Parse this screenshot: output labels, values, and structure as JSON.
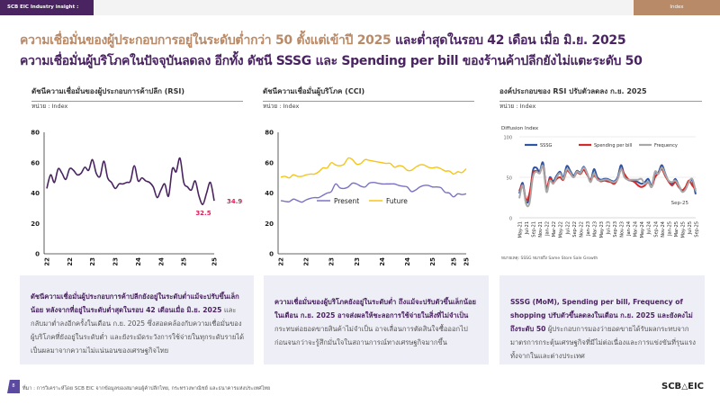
{
  "header": {
    "brand": "SCB EIC Industry insight : Wholesale & Retail",
    "index_tab": "Index"
  },
  "headline": {
    "line1_a": "ความเชื่อมั่นของผู้ประกอบการอยู่ในระดับต่ำกว่า 50 ตั้งแต่เข้าปี 2025",
    "line1_b": "และต่ำสุดในรอบ 42 เดือน เมื่อ มิ.ย. 2025",
    "line2": "ความเชื่อมั่นผู้บริโภคในปัจจุบันลดลง อีกทั้ง ดัชนี SSSG และ Spending per bill ของร้านค้าปลีกยังไม่แตะระดับ 50"
  },
  "panels": [
    {
      "title": "ดัชนีความเชื่อมั่นของผู้ประกอบการค้าปลีก (RSI)",
      "unit": "หน่วย : Index",
      "text_bold": "ดัชนีความเชื่อมั่นผู้ประกอบการค้าปลีกยังอยู่ในระดับต่ำแม้จะปรับขึ้นเล็กน้อย หลังจากที่อยู่ในระดับต่ำสุดในรอบ 42 เดือนเมื่อ มิ.ย. 2025",
      "text": " และกลับมาต่ำลงอีกครั้งในเดือน ก.ย. 2025 ซึ่งสอดคล้องกับความเชื่อมั่นของผู้บริโภคที่ยังอยู่ในระดับต่ำ และยังระมัดระวังการใช้จ่ายในทุกระดับรายได้ เป็นผลมาจากความไม่แน่นอนของเศรษฐกิจไทย"
    },
    {
      "title": "ดัชนีความเชื่อมั่นผู้บริโภค (CCI)",
      "unit": "หน่วย : Index",
      "text_bold": "ความเชื่อมั่นของผู้บริโภคยังอยู่ในระดับต่ำ ถึงแม้จะปรับตัวขึ้นเล็กน้อยในเดือน ก.ย. 2025 อาจส่งผลให้ชะลอการใช้จ่ายในสิ่งที่ไม่จำเป็น",
      "text": " กระทบต่อยอดขายสินค้าไม่จำเป็น อาจเลื่อนการตัดสินใจซื้อออกไปก่อนจนกว่าจะรู้สึกมั่นใจในสถานการณ์ทางเศรษฐกิจมากขึ้น"
    },
    {
      "title": "องค์ประกอบของ RSI ปรับตัวลดลง ก.ย. 2025",
      "unit": "หน่วย : Index",
      "text_bold": "SSSG (MoM), Spending per bill, Frequency of shopping ปรับตัวขึ้นลดลงในเดือน ก.ย. 2025 และยังคงไม่ถึงระดับ 50",
      "text": " ผู้ประกอบการมองว่ายอดขายได้รับผลกระทบจากมาตรการกระตุ้นเศรษฐกิจที่มีไม่ต่อเนื่องและการแข่งขันที่รุนแรงทั้งจากในและต่างประเทศ"
    }
  ],
  "footer": {
    "page": "8",
    "source": "ที่มา : การวิเคราะห์โดย SCB EIC จากข้อมูลของสมาคมผู้ค้าปลีกไทย, กระทรวงพาณิชย์ และธนาคารแห่งประเทศไทย",
    "logo": "SCB EIC"
  },
  "chart_data": [
    {
      "type": "line",
      "title": "ดัชนีความเชื่อมั่นของผู้ประกอบการค้าปลีก (RSI)",
      "ylim": [
        0,
        80
      ],
      "yticks": [
        0,
        20,
        40,
        60,
        80
      ],
      "xticks": [
        "Jan-2022",
        "Jul-2022",
        "Jan-2023",
        "Jul-2023",
        "Jan-2024",
        "Jul-2024",
        "Jan-2025",
        "Sep-2025"
      ],
      "xtick_index": [
        0,
        6,
        12,
        18,
        24,
        30,
        36,
        44
      ],
      "series": [
        {
          "color": "#4a2461",
          "values": [
            43,
            52,
            47,
            56,
            53,
            49,
            56,
            55,
            52,
            53,
            57,
            55,
            62,
            53,
            51,
            61,
            50,
            47,
            43,
            46,
            46,
            47,
            48,
            58,
            48,
            50,
            48,
            47,
            44,
            37,
            42,
            46,
            38,
            56,
            54,
            63,
            47,
            44,
            42,
            48,
            38,
            32.5,
            40,
            47,
            34.9
          ]
        }
      ],
      "annotations": [
        {
          "label": "32.5",
          "index": 41
        },
        {
          "label": "34.9",
          "index": 44
        }
      ],
      "annotation_color": "#d6245a"
    },
    {
      "type": "line",
      "title": "ดัชนีความเชื่อมั่นผู้บริโภค (CCI)",
      "ylim": [
        0,
        80
      ],
      "yticks": [
        0,
        20,
        40,
        60,
        80
      ],
      "xticks": [
        "Jan-2022",
        "Jul-2022",
        "Jan-2023",
        "Jul-2023",
        "Jan-2024",
        "Jul-2024",
        "Jan-2025",
        "Jun-2025",
        "Sep-2025"
      ],
      "xtick_index": [
        0,
        6,
        12,
        18,
        24,
        30,
        36,
        41,
        44
      ],
      "legend": "inside-lower",
      "series": [
        {
          "name": "Present",
          "color": "#7b72c4",
          "values": [
            35,
            34.5,
            34.3,
            36,
            35,
            34,
            35.5,
            36.5,
            37,
            37,
            38.5,
            40,
            41,
            46,
            43.5,
            43,
            44,
            46.5,
            46,
            44.5,
            44,
            46.5,
            47,
            46.5,
            46,
            46,
            46,
            46,
            45,
            44.5,
            44,
            41,
            42,
            44,
            45,
            45,
            44,
            44,
            43.5,
            40.5,
            40,
            37.5,
            39.5,
            39,
            39.5
          ]
        },
        {
          "name": "Future",
          "color": "#f5c518",
          "values": [
            50.5,
            51,
            50,
            52,
            51,
            51,
            52,
            52.5,
            52.5,
            54,
            56.5,
            56.5,
            60,
            58.5,
            58,
            59,
            63,
            62,
            59,
            59.5,
            62,
            61.5,
            61,
            60.5,
            60,
            59.5,
            59.5,
            57,
            58,
            57.5,
            55,
            55,
            57,
            58.5,
            58.5,
            57,
            56.5,
            57,
            56,
            54.5,
            54.5,
            52.5,
            54,
            53.5,
            56
          ]
        }
      ]
    },
    {
      "type": "line",
      "title": "องค์ประกอบของ RSI ปรับตัวลดลง ก.ย. 2025",
      "ylabel": "Diffusion Index",
      "ylim": [
        0,
        100
      ],
      "yticks": [
        0,
        50,
        100
      ],
      "legend": "top",
      "xticks": [
        "May-21",
        "Jul-21",
        "Sep-21",
        "Nov-21",
        "Jan-22",
        "Mar-22",
        "May-22",
        "Jul-22",
        "Sep-22",
        "Nov-22",
        "Jan-23",
        "Mar-23",
        "May-23",
        "Jul-23",
        "Sep-23",
        "Nov-23",
        "Jan-24",
        "Mar-24",
        "May-24",
        "Jul-24",
        "Sep-24",
        "Nov-24",
        "Jan-25",
        "Mar-25",
        "May-25",
        "Jul-25",
        "Sep-25"
      ],
      "annotation": "Sep-25",
      "note": "หมายเหตุ: SSSG หมายถึง Same Store Sale Growth",
      "series": [
        {
          "name": "SSSG",
          "color": "#2f55a4",
          "values": [
            30,
            43,
            20,
            25,
            58,
            62,
            57,
            68,
            35,
            50,
            45,
            52,
            57,
            50,
            64,
            58,
            52,
            58,
            56,
            63,
            55,
            45,
            60,
            50,
            47,
            48,
            48,
            46,
            45,
            50,
            65,
            52,
            47,
            46,
            46,
            44,
            42,
            44,
            48,
            40,
            55,
            56,
            65,
            55,
            45,
            42,
            48,
            40,
            33,
            36,
            45,
            46,
            29
          ]
        },
        {
          "name": "Spending per bill",
          "color": "#d42a2a",
          "values": [
            33,
            40,
            22,
            30,
            54,
            58,
            55,
            64,
            37,
            49,
            43,
            48,
            50,
            47,
            58,
            55,
            50,
            56,
            54,
            59,
            53,
            47,
            52,
            48,
            45,
            46,
            45,
            44,
            42,
            48,
            60,
            54,
            48,
            46,
            44,
            40,
            38,
            40,
            44,
            38,
            50,
            55,
            60,
            52,
            45,
            40,
            44,
            38,
            34,
            38,
            46,
            40,
            35
          ]
        },
        {
          "name": "Frequency",
          "color": "#a8a8a8",
          "values": [
            24,
            40,
            17,
            18,
            50,
            57,
            55,
            64,
            32,
            46,
            42,
            50,
            55,
            48,
            60,
            56,
            50,
            57,
            55,
            62,
            55,
            44,
            55,
            47,
            46,
            47,
            47,
            45,
            44,
            48,
            60,
            50,
            47,
            47,
            47,
            47,
            48,
            42,
            45,
            38,
            57,
            54,
            62,
            54,
            46,
            44,
            46,
            40,
            32,
            35,
            44,
            48,
            33
          ]
        }
      ]
    }
  ]
}
